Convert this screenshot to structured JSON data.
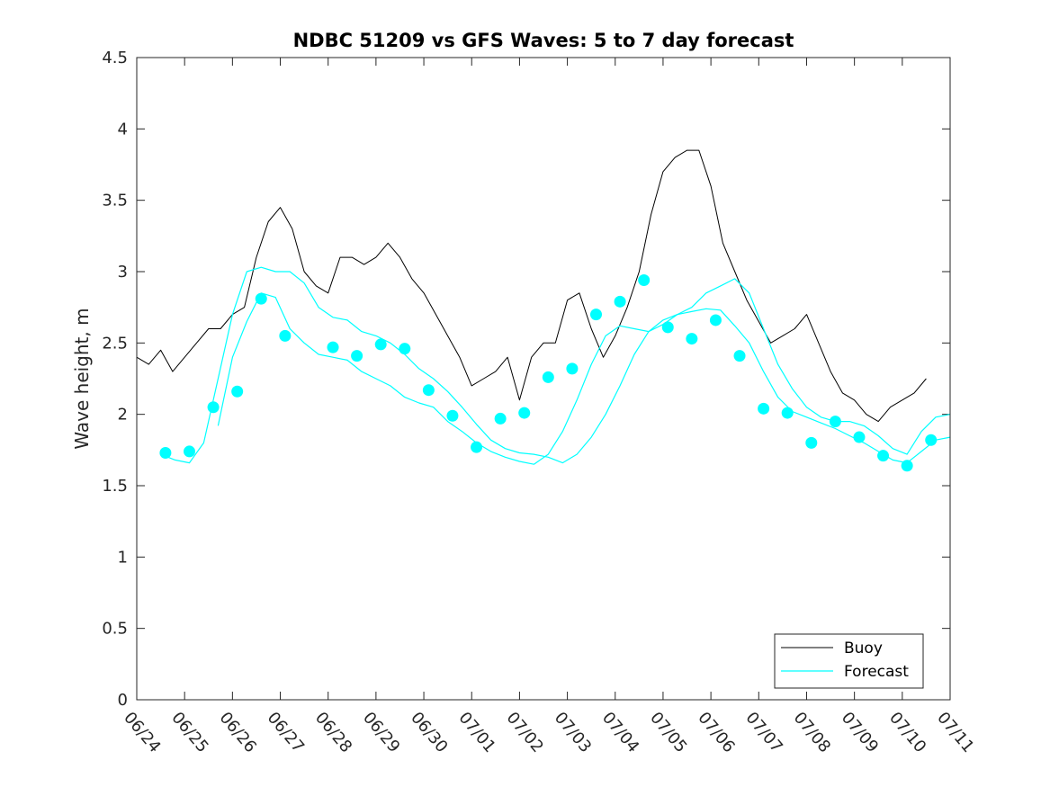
{
  "chart_data": {
    "type": "line",
    "title": "NDBC 51209 vs GFS Waves: 5 to 7 day forecast",
    "xlabel": "",
    "ylabel": "Wave height, m",
    "ylim": [
      0,
      4.5
    ],
    "yticks": [
      0,
      0.5,
      1,
      1.5,
      2,
      2.5,
      3,
      3.5,
      4,
      4.5
    ],
    "ytick_labels": [
      "0",
      "0.5",
      "1",
      "1.5",
      "2",
      "2.5",
      "3",
      "3.5",
      "4",
      "4.5"
    ],
    "x_unit": "days since 06/24",
    "xlim": [
      -1,
      16
    ],
    "xticks": [
      -1,
      0,
      1,
      2,
      3,
      4,
      5,
      6,
      7,
      8,
      9,
      10,
      11,
      12,
      13,
      14,
      15,
      16
    ],
    "xtick_labels": [
      "06/24",
      "06/25",
      "06/26",
      "06/27",
      "06/28",
      "06/29",
      "06/30",
      "07/01",
      "07/02",
      "07/03",
      "07/04",
      "07/05",
      "07/06",
      "07/07",
      "07/08",
      "07/09",
      "07/10",
      "07/11"
    ],
    "grid": false,
    "legend": {
      "position": "bottom-right",
      "entries": [
        "Buoy",
        "Forecast"
      ]
    },
    "colors": {
      "buoy": "#000000",
      "forecast": "#00ffff",
      "axis": "#262626"
    },
    "series": [
      {
        "name": "Buoy",
        "style": "line",
        "x": [
          -1.0,
          -0.75,
          -0.5,
          -0.25,
          0.0,
          0.25,
          0.5,
          0.75,
          1.0,
          1.25,
          1.5,
          1.75,
          2.0,
          2.25,
          2.5,
          2.75,
          3.0,
          3.25,
          3.5,
          3.75,
          4.0,
          4.25,
          4.5,
          4.75,
          5.0,
          5.25,
          5.5,
          5.75,
          6.0,
          6.25,
          6.5,
          6.75,
          7.0,
          7.25,
          7.5,
          7.75,
          8.0,
          8.25,
          8.5,
          8.75,
          9.0,
          9.25,
          9.5,
          9.75,
          10.0,
          10.25,
          10.5,
          10.75,
          11.0,
          11.25,
          11.5,
          11.75,
          12.0,
          12.25,
          12.5,
          12.75,
          13.0,
          13.25,
          13.5,
          13.75,
          14.0,
          14.25,
          14.5,
          14.75,
          15.0,
          15.25,
          15.5
        ],
        "y": [
          2.4,
          2.35,
          2.45,
          2.3,
          2.4,
          2.5,
          2.6,
          2.6,
          2.7,
          2.75,
          3.1,
          3.35,
          3.45,
          3.3,
          3.0,
          2.9,
          2.85,
          3.1,
          3.1,
          3.05,
          3.1,
          3.2,
          3.1,
          2.95,
          2.85,
          2.7,
          2.55,
          2.4,
          2.2,
          2.25,
          2.3,
          2.4,
          2.1,
          2.4,
          2.5,
          2.5,
          2.8,
          2.85,
          2.6,
          2.4,
          2.55,
          2.75,
          3.0,
          3.4,
          3.7,
          3.8,
          3.85,
          3.85,
          3.6,
          3.2,
          3.0,
          2.8,
          2.65,
          2.5,
          2.55,
          2.6,
          2.7,
          2.5,
          2.3,
          2.15,
          2.1,
          2.0,
          1.95,
          2.05,
          2.1,
          2.15,
          2.25
        ]
      },
      {
        "name": "Forecast",
        "style": "markers",
        "x": [
          -0.4,
          0.1,
          0.6,
          1.1,
          1.6,
          2.1,
          3.1,
          3.6,
          4.1,
          4.6,
          5.1,
          5.6,
          6.1,
          6.6,
          7.1,
          7.6,
          8.1,
          8.6,
          9.1,
          9.6,
          10.1,
          10.6,
          11.1,
          11.6,
          12.1,
          12.6,
          13.1,
          13.6,
          14.1,
          14.6,
          15.1,
          15.6
        ],
        "y": [
          1.73,
          1.74,
          2.05,
          2.16,
          2.81,
          2.55,
          2.47,
          2.41,
          2.49,
          2.46,
          2.17,
          1.99,
          1.77,
          1.97,
          2.01,
          2.26,
          2.32,
          2.7,
          2.79,
          2.94,
          2.61,
          2.53,
          2.66,
          2.41,
          2.04,
          2.01,
          1.8,
          1.95,
          1.84,
          1.71,
          1.64,
          1.82
        ]
      },
      {
        "name": "",
        "style": "line",
        "x": [
          -0.5,
          -0.2,
          0.1,
          0.4,
          0.7,
          1.0,
          1.3,
          1.6,
          1.9,
          2.2,
          2.5,
          2.8,
          3.1,
          3.4,
          3.7,
          4.0,
          4.3,
          4.6,
          4.9,
          5.2,
          5.5,
          5.8,
          6.1,
          6.4,
          6.7,
          7.0,
          7.3,
          7.6,
          7.9,
          8.2,
          8.5,
          8.8,
          9.1,
          9.4,
          9.7,
          10.0,
          10.3,
          10.6,
          10.9,
          11.2,
          11.5,
          11.8,
          12.1,
          12.4,
          12.7,
          13.0,
          13.3,
          13.6,
          13.9,
          14.2,
          14.5,
          14.8,
          15.1,
          15.4,
          15.7,
          16.0
        ],
        "y": [
          1.72,
          1.68,
          1.66,
          1.8,
          2.25,
          2.7,
          3.0,
          3.03,
          3.0,
          3.0,
          2.92,
          2.75,
          2.68,
          2.66,
          2.58,
          2.55,
          2.5,
          2.42,
          2.32,
          2.25,
          2.16,
          2.05,
          1.93,
          1.82,
          1.76,
          1.73,
          1.72,
          1.7,
          1.66,
          1.72,
          1.84,
          2.0,
          2.2,
          2.42,
          2.58,
          2.66,
          2.7,
          2.75,
          2.85,
          2.9,
          2.95,
          2.85,
          2.6,
          2.35,
          2.18,
          2.05,
          1.98,
          1.95,
          1.95,
          1.92,
          1.85,
          1.76,
          1.72,
          1.88,
          1.98,
          2.0
        ]
      },
      {
        "name": "",
        "style": "line",
        "x": [
          0.7,
          1.0,
          1.3,
          1.6,
          1.9,
          2.2,
          2.5,
          2.8,
          3.1,
          3.4,
          3.7,
          4.0,
          4.3,
          4.6,
          4.9,
          5.2,
          5.5,
          5.8,
          6.1,
          6.4,
          6.7,
          7.0,
          7.3,
          7.6,
          7.9,
          8.2,
          8.5,
          8.8,
          9.1,
          9.4,
          9.7,
          10.0,
          10.3,
          10.6,
          10.9,
          11.2,
          11.5,
          11.8,
          12.1,
          12.4,
          12.7,
          13.0,
          13.3,
          13.6,
          13.9,
          14.2,
          14.5,
          14.8,
          15.1,
          15.4,
          15.7,
          16.0
        ],
        "y": [
          1.92,
          2.4,
          2.65,
          2.85,
          2.82,
          2.6,
          2.5,
          2.42,
          2.4,
          2.38,
          2.3,
          2.25,
          2.2,
          2.12,
          2.08,
          2.05,
          1.95,
          1.88,
          1.8,
          1.74,
          1.7,
          1.67,
          1.65,
          1.72,
          1.88,
          2.1,
          2.35,
          2.55,
          2.62,
          2.6,
          2.58,
          2.63,
          2.7,
          2.72,
          2.74,
          2.73,
          2.62,
          2.5,
          2.3,
          2.12,
          2.02,
          1.98,
          1.94,
          1.9,
          1.85,
          1.8,
          1.74,
          1.68,
          1.66,
          1.74,
          1.82,
          1.84
        ]
      }
    ]
  }
}
